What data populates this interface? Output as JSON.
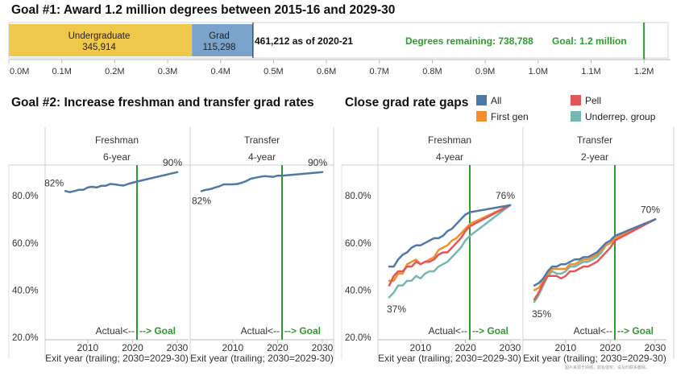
{
  "colors": {
    "undergrad": "#F0C84B",
    "grad": "#7AA3CB",
    "goal_line": "#2E9B2E",
    "green_text": "#2E9B2E",
    "all": "#4E79A7",
    "pell": "#E15759",
    "first_gen": "#F28E2B",
    "underrep": "#76B7B2"
  },
  "goal1": {
    "title": "Goal #1: Award 1.2 million degrees between 2015-16 and 2029-30",
    "bar": {
      "segments": [
        {
          "label": "Undergraduate",
          "value_label": "345,914",
          "value": 345914
        },
        {
          "label": "Grad",
          "value_label": "115,298",
          "value": 115298
        }
      ],
      "total_label": "461,212 as of 2020-21",
      "remaining_label": "Degrees remaining: 738,788",
      "goal_label": "Goal: 1.2 million",
      "goal_value": 1200000
    },
    "axis": {
      "xlim": [
        0,
        1250000
      ],
      "ticks": [
        0,
        100000,
        200000,
        300000,
        400000,
        500000,
        600000,
        700000,
        800000,
        900000,
        1000000,
        1100000,
        1200000
      ],
      "tick_labels": [
        "0.0M",
        "0.1M",
        "0.2M",
        "0.3M",
        "0.4M",
        "0.5M",
        "0.6M",
        "0.7M",
        "0.8M",
        "0.9M",
        "1.0M",
        "1.1M",
        "1.2M"
      ]
    }
  },
  "goal2": {
    "title": "Goal #2: Increase freshman and transfer grad rates",
    "panels": [
      {
        "header": "Freshman",
        "subheader": "6-year",
        "start_label": "82%",
        "end_label": "90%"
      },
      {
        "header": "Transfer",
        "subheader": "4-year",
        "start_label": "82%",
        "end_label": "90%"
      }
    ]
  },
  "gaps": {
    "title": "Close grad rate gaps",
    "legend": [
      {
        "key": "all",
        "label": "All"
      },
      {
        "key": "pell",
        "label": "Pell"
      },
      {
        "key": "first_gen",
        "label": "First gen"
      },
      {
        "key": "underrep",
        "label": "Underrep. group"
      }
    ],
    "panels": [
      {
        "header": "Freshman",
        "subheader": "4-year",
        "start_label": "37%",
        "end_label": "76%"
      },
      {
        "header": "Transfer",
        "subheader": "2-year",
        "start_label": "35%",
        "end_label": "70%"
      }
    ]
  },
  "shared": {
    "x_tick_labels": [
      "2010",
      "2020",
      "2030"
    ],
    "xlabel": "Exit year (trailing; 2030=2029-30)",
    "actual_label": "Actual<--",
    "goal_label": "--> Goal",
    "y_tick_labels": [
      "20.0%",
      "40.0%",
      "60.0%",
      "80.0%"
    ]
  },
  "watermark": "图片来源于网络，如有侵权，请及时联系删除。",
  "chart_data": [
    {
      "type": "bar",
      "title": "Goal #1: Award 1.2 million degrees between 2015-16 and 2029-30",
      "orientation": "horizontal",
      "stacked": true,
      "series": [
        {
          "name": "Undergraduate",
          "values": [
            345914
          ]
        },
        {
          "name": "Grad",
          "values": [
            115298
          ]
        }
      ],
      "total": 461212,
      "remaining": 738788,
      "goal": 1200000,
      "xlim": [
        0,
        1250000
      ]
    },
    {
      "type": "line",
      "title": "Goal #2: Increase freshman and transfer grad rates",
      "panel": "Freshman 6-year",
      "xlabel": "Exit year (trailing; 2030=2029-30)",
      "xlim": [
        2002,
        2031
      ],
      "ylim": [
        0.19,
        0.93
      ],
      "actual_goal_divider": 2021,
      "series": [
        {
          "x": [
            2005,
            2006,
            2007,
            2008,
            2009,
            2010,
            2011,
            2012,
            2013,
            2014,
            2015,
            2016,
            2017,
            2018,
            2019,
            2020,
            2021
          ],
          "values": [
            0.82,
            0.815,
            0.82,
            0.825,
            0.825,
            0.835,
            0.838,
            0.835,
            0.842,
            0.842,
            0.85,
            0.848,
            0.845,
            0.843,
            0.85,
            0.855,
            0.86
          ]
        },
        {
          "x": [
            2021,
            2030
          ],
          "values": [
            0.86,
            0.9
          ],
          "projection": true
        }
      ]
    },
    {
      "type": "line",
      "panel": "Transfer 4-year",
      "xlabel": "Exit year (trailing; 2030=2029-30)",
      "xlim": [
        2002,
        2031
      ],
      "ylim": [
        0.19,
        0.93
      ],
      "actual_goal_divider": 2021,
      "series": [
        {
          "x": [
            2003,
            2004,
            2005,
            2006,
            2007,
            2008,
            2009,
            2010,
            2011,
            2012,
            2013,
            2014,
            2015,
            2016,
            2017,
            2018,
            2019,
            2020,
            2021
          ],
          "values": [
            0.82,
            0.825,
            0.828,
            0.835,
            0.84,
            0.848,
            0.848,
            0.848,
            0.85,
            0.855,
            0.862,
            0.872,
            0.876,
            0.88,
            0.883,
            0.882,
            0.88,
            0.885,
            0.885
          ]
        },
        {
          "x": [
            2021,
            2030
          ],
          "values": [
            0.885,
            0.9
          ],
          "projection": true
        }
      ]
    },
    {
      "type": "line",
      "title": "Close grad rate gaps",
      "panel": "Freshman 4-year",
      "xlabel": "Exit year (trailing; 2030=2029-30)",
      "xlim": [
        2002,
        2031
      ],
      "ylim": [
        0.19,
        0.93
      ],
      "actual_goal_divider": 2021,
      "series": [
        {
          "name": "All",
          "x": [
            2003,
            2004,
            2005,
            2006,
            2007,
            2008,
            2009,
            2010,
            2011,
            2012,
            2013,
            2014,
            2015,
            2016,
            2017,
            2018,
            2019,
            2020,
            2021,
            2030
          ],
          "values": [
            0.5,
            0.5,
            0.53,
            0.55,
            0.56,
            0.58,
            0.59,
            0.59,
            0.6,
            0.61,
            0.62,
            0.62,
            0.63,
            0.65,
            0.66,
            0.68,
            0.7,
            0.72,
            0.73,
            0.76
          ]
        },
        {
          "name": "Pell",
          "x": [
            2003,
            2004,
            2005,
            2006,
            2007,
            2008,
            2009,
            2010,
            2011,
            2012,
            2013,
            2014,
            2015,
            2016,
            2017,
            2018,
            2019,
            2020,
            2021,
            2030
          ],
          "values": [
            0.42,
            0.46,
            0.48,
            0.48,
            0.5,
            0.5,
            0.52,
            0.51,
            0.52,
            0.52,
            0.53,
            0.55,
            0.56,
            0.56,
            0.58,
            0.6,
            0.62,
            0.65,
            0.67,
            0.76
          ]
        },
        {
          "name": "First gen",
          "x": [
            2003,
            2004,
            2005,
            2006,
            2007,
            2008,
            2009,
            2010,
            2011,
            2012,
            2013,
            2014,
            2015,
            2016,
            2017,
            2018,
            2019,
            2020,
            2021,
            2030
          ],
          "values": [
            0.44,
            0.44,
            0.47,
            0.47,
            0.51,
            0.52,
            0.53,
            0.51,
            0.52,
            0.53,
            0.54,
            0.57,
            0.58,
            0.59,
            0.61,
            0.62,
            0.64,
            0.66,
            0.68,
            0.76
          ]
        },
        {
          "name": "Underrep. group",
          "x": [
            2003,
            2004,
            2005,
            2006,
            2007,
            2008,
            2009,
            2010,
            2011,
            2012,
            2013,
            2014,
            2015,
            2016,
            2017,
            2018,
            2019,
            2020,
            2021,
            2030
          ],
          "values": [
            0.37,
            0.39,
            0.42,
            0.42,
            0.44,
            0.44,
            0.46,
            0.45,
            0.47,
            0.48,
            0.48,
            0.5,
            0.51,
            0.52,
            0.54,
            0.56,
            0.58,
            0.61,
            0.63,
            0.76
          ]
        }
      ]
    },
    {
      "type": "line",
      "panel": "Transfer 2-year",
      "xlabel": "Exit year (trailing; 2030=2029-30)",
      "xlim": [
        2002,
        2031
      ],
      "ylim": [
        0.19,
        0.93
      ],
      "actual_goal_divider": 2021,
      "series": [
        {
          "name": "All",
          "x": [
            2003,
            2004,
            2005,
            2006,
            2007,
            2008,
            2009,
            2010,
            2011,
            2012,
            2013,
            2014,
            2015,
            2016,
            2017,
            2018,
            2019,
            2020,
            2021,
            2030
          ],
          "values": [
            0.42,
            0.43,
            0.45,
            0.48,
            0.5,
            0.5,
            0.51,
            0.51,
            0.52,
            0.53,
            0.53,
            0.54,
            0.54,
            0.55,
            0.56,
            0.58,
            0.6,
            0.61,
            0.63,
            0.7
          ]
        },
        {
          "name": "Pell",
          "x": [
            2003,
            2004,
            2005,
            2006,
            2007,
            2008,
            2009,
            2010,
            2011,
            2012,
            2013,
            2014,
            2015,
            2016,
            2017,
            2018,
            2019,
            2020,
            2021,
            2030
          ],
          "values": [
            0.36,
            0.39,
            0.43,
            0.46,
            0.46,
            0.46,
            0.45,
            0.46,
            0.48,
            0.48,
            0.49,
            0.5,
            0.5,
            0.51,
            0.52,
            0.54,
            0.56,
            0.58,
            0.61,
            0.7
          ]
        },
        {
          "name": "First gen",
          "x": [
            2003,
            2004,
            2005,
            2006,
            2007,
            2008,
            2009,
            2010,
            2011,
            2012,
            2013,
            2014,
            2015,
            2016,
            2017,
            2018,
            2019,
            2020,
            2021,
            2030
          ],
          "values": [
            0.4,
            0.41,
            0.44,
            0.47,
            0.49,
            0.49,
            0.49,
            0.49,
            0.51,
            0.51,
            0.52,
            0.53,
            0.53,
            0.54,
            0.55,
            0.57,
            0.59,
            0.6,
            0.62,
            0.7
          ]
        },
        {
          "name": "Underrep. group",
          "x": [
            2003,
            2004,
            2005,
            2006,
            2007,
            2008,
            2009,
            2010,
            2011,
            2012,
            2013,
            2014,
            2015,
            2016,
            2017,
            2018,
            2019,
            2020,
            2021,
            2030
          ],
          "values": [
            0.35,
            0.38,
            0.42,
            0.46,
            0.48,
            0.47,
            0.47,
            0.48,
            0.5,
            0.5,
            0.51,
            0.52,
            0.52,
            0.53,
            0.54,
            0.56,
            0.59,
            0.6,
            0.62,
            0.7
          ]
        }
      ]
    }
  ]
}
